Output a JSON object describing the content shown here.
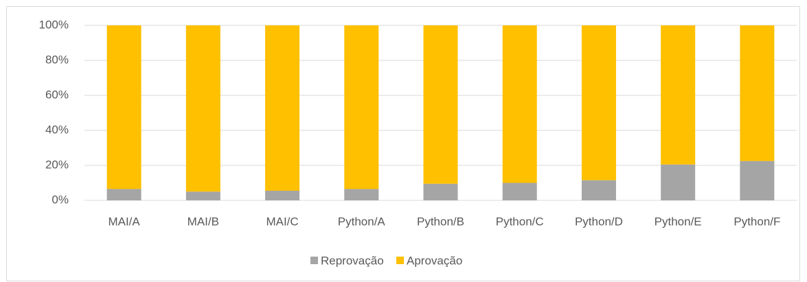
{
  "chart_data": {
    "type": "stacked_bar",
    "categories": [
      "MAI/A",
      "MAI/B",
      "MAI/C",
      "Python/A",
      "Python/B",
      "Python/C",
      "Python/D",
      "Python/E",
      "Python/F"
    ],
    "series": [
      {
        "name": "Reprovação",
        "color": "#a5a5a5",
        "values": [
          6.5,
          5,
          5.5,
          6.5,
          9.5,
          10,
          11.5,
          20.5,
          22.5
        ]
      },
      {
        "name": "Aprovação",
        "color": "#ffc000",
        "values": [
          93.5,
          95,
          94.5,
          93.5,
          90.5,
          90,
          88.5,
          79.5,
          77.5
        ]
      }
    ],
    "ylim": [
      0,
      100
    ],
    "yticks": [
      {
        "value": 0,
        "label": "0%"
      },
      {
        "value": 20,
        "label": "20%"
      },
      {
        "value": 40,
        "label": "40%"
      },
      {
        "value": 60,
        "label": "60%"
      },
      {
        "value": 80,
        "label": "80%"
      },
      {
        "value": 100,
        "label": "100%"
      }
    ],
    "grid": true
  }
}
